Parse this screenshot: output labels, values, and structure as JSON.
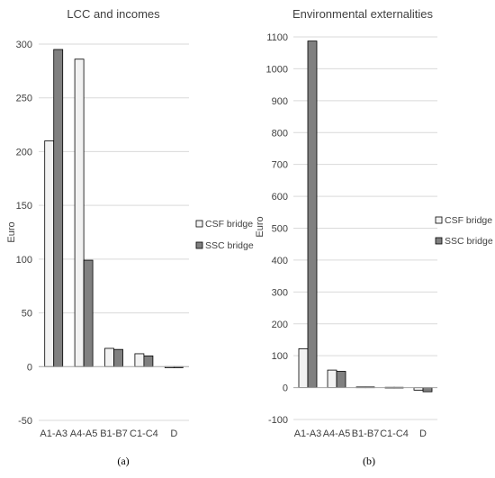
{
  "colors": {
    "csf": "#f2f2f2",
    "ssc": "#808080",
    "outline": "#000000",
    "grid": "#d9d9d9"
  },
  "chart_data": [
    {
      "type": "bar",
      "title": "LCC and incomes",
      "ylabel": "Euro",
      "categories": [
        "A1-A3",
        "A4-A5",
        "B1-B7",
        "C1-C4",
        "D"
      ],
      "series": [
        {
          "name": "CSF bridge",
          "values": [
            210,
            286,
            17,
            12,
            -1
          ]
        },
        {
          "name": "SSC bridge",
          "values": [
            295,
            99,
            16,
            10,
            -1
          ]
        }
      ],
      "ylim": [
        -50,
        300
      ],
      "yticks": [
        "-50",
        "0",
        "50",
        "100",
        "150",
        "200",
        "250",
        "300"
      ],
      "ytick_values": [
        -50,
        0,
        50,
        100,
        150,
        200,
        250,
        300
      ],
      "grid": true,
      "legend": "right",
      "panel_label": "(a)"
    },
    {
      "type": "bar",
      "title": "Environmental externalities",
      "ylabel": "Euro",
      "categories": [
        "A1-A3",
        "A4-A5",
        "B1-B7",
        "C1-C4",
        "D"
      ],
      "series": [
        {
          "name": "CSF bridge",
          "values": [
            122,
            55,
            2,
            1,
            -8
          ]
        },
        {
          "name": "SSC bridge",
          "values": [
            1087,
            51,
            2,
            1,
            -13
          ]
        }
      ],
      "ylim": [
        -100,
        1100
      ],
      "yticks": [
        "-100",
        "0",
        "100",
        "200",
        "300",
        "400",
        "500",
        "600",
        "700",
        "800",
        "900",
        "1000",
        "1100"
      ],
      "ytick_values": [
        -100,
        0,
        100,
        200,
        300,
        400,
        500,
        600,
        700,
        800,
        900,
        1000,
        1100
      ],
      "grid": true,
      "legend": "right",
      "panel_label": "(b)"
    }
  ]
}
